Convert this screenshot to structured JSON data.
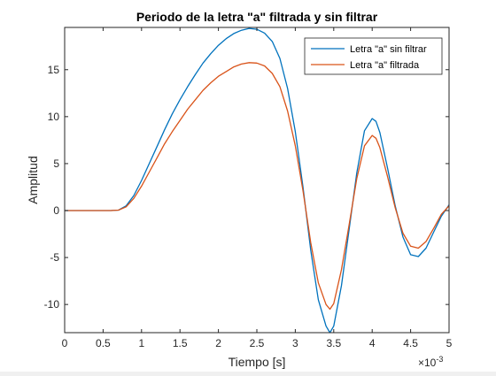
{
  "chart_data": {
    "type": "line",
    "title": "Periodo de la letra \"a\" filtrada y sin filtrar",
    "xlabel": "Tiempo [s]",
    "ylabel": "Amplitud",
    "x_exponent_label": "×10",
    "x_exponent_power": "-3",
    "xlim": [
      0,
      5
    ],
    "ylim": [
      -13,
      19.5
    ],
    "x_ticks": [
      0,
      0.5,
      1,
      1.5,
      2,
      2.5,
      3,
      3.5,
      4,
      4.5,
      5
    ],
    "x_tick_labels": [
      "0",
      "0.5",
      "1",
      "1.5",
      "2",
      "2.5",
      "3",
      "3.5",
      "4",
      "4.5",
      "5"
    ],
    "y_ticks": [
      -10,
      -5,
      0,
      5,
      10,
      15
    ],
    "y_tick_labels": [
      "-10",
      "-5",
      "0",
      "5",
      "10",
      "15"
    ],
    "grid": false,
    "legend_position": "top-right",
    "series": [
      {
        "name": "Letra \"a\" sin filtrar",
        "color": "#0072BD",
        "x": [
          0,
          0.5,
          0.6,
          0.7,
          0.8,
          0.9,
          1.0,
          1.1,
          1.2,
          1.3,
          1.4,
          1.5,
          1.6,
          1.7,
          1.8,
          1.9,
          2.0,
          2.1,
          2.2,
          2.3,
          2.4,
          2.5,
          2.6,
          2.7,
          2.8,
          2.9,
          3.0,
          3.1,
          3.2,
          3.3,
          3.4,
          3.45,
          3.5,
          3.6,
          3.7,
          3.8,
          3.9,
          4.0,
          4.05,
          4.1,
          4.2,
          4.3,
          4.4,
          4.5,
          4.6,
          4.7,
          4.8,
          4.9,
          5.0
        ],
        "y": [
          0,
          0,
          0,
          0.05,
          0.5,
          1.6,
          3.2,
          5.0,
          6.8,
          8.6,
          10.3,
          11.8,
          13.2,
          14.5,
          15.7,
          16.7,
          17.6,
          18.3,
          18.85,
          19.2,
          19.4,
          19.3,
          18.9,
          18.0,
          16.2,
          13.0,
          8.4,
          2.5,
          -4.2,
          -9.5,
          -12.3,
          -13.0,
          -12.3,
          -8.0,
          -2.0,
          4.0,
          8.5,
          9.8,
          9.5,
          8.3,
          4.5,
          0.5,
          -2.8,
          -4.7,
          -4.9,
          -4.0,
          -2.3,
          -0.6,
          0.6
        ]
      },
      {
        "name": "Letra \"a\" filtrada",
        "color": "#D95319",
        "x": [
          0,
          0.5,
          0.6,
          0.7,
          0.8,
          0.9,
          1.0,
          1.1,
          1.2,
          1.3,
          1.4,
          1.5,
          1.6,
          1.7,
          1.8,
          1.9,
          2.0,
          2.1,
          2.2,
          2.3,
          2.4,
          2.5,
          2.6,
          2.7,
          2.8,
          2.9,
          3.0,
          3.1,
          3.2,
          3.3,
          3.4,
          3.45,
          3.5,
          3.6,
          3.7,
          3.8,
          3.9,
          4.0,
          4.05,
          4.1,
          4.2,
          4.3,
          4.4,
          4.5,
          4.6,
          4.7,
          4.8,
          4.9,
          5.0
        ],
        "y": [
          0,
          0,
          0,
          0.05,
          0.4,
          1.3,
          2.6,
          4.1,
          5.6,
          7.1,
          8.4,
          9.6,
          10.8,
          11.8,
          12.8,
          13.6,
          14.3,
          14.8,
          15.3,
          15.6,
          15.75,
          15.7,
          15.4,
          14.6,
          13.2,
          10.6,
          6.9,
          2.1,
          -3.4,
          -7.7,
          -10.0,
          -10.5,
          -9.9,
          -6.3,
          -1.5,
          3.4,
          6.9,
          8.0,
          7.7,
          6.7,
          3.6,
          0.3,
          -2.4,
          -3.8,
          -4.0,
          -3.3,
          -1.9,
          -0.4,
          0.5
        ]
      }
    ]
  }
}
